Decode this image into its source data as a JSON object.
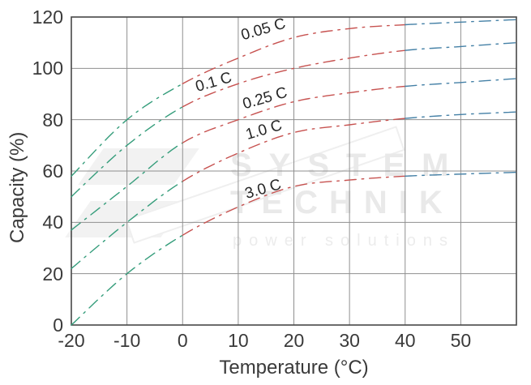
{
  "watermark": {
    "line1": "SYSTEM",
    "line2": "TECHNIK",
    "line3": "power solutions"
  },
  "chart_data": {
    "type": "line",
    "title": "",
    "xlabel": "Temperature (°C)",
    "ylabel": "Capacity (%)",
    "xlim": [
      -20,
      60
    ],
    "ylim": [
      0,
      120
    ],
    "xticks": [
      -20,
      -10,
      0,
      10,
      20,
      30,
      40,
      50
    ],
    "yticks": [
      0,
      20,
      40,
      60,
      80,
      100,
      120
    ],
    "grid": true,
    "grid_step_x": 10,
    "legend_position": "labels-on-curves",
    "line_style": "dash-dot",
    "x": [
      -20,
      -10,
      0,
      10,
      20,
      30,
      40,
      50,
      60
    ],
    "series": [
      {
        "name": "0.05 C",
        "values": [
          58,
          80,
          94,
          104,
          112,
          115.5,
          117,
          118,
          119
        ]
      },
      {
        "name": "0.1 C",
        "values": [
          50,
          70,
          85,
          94,
          100,
          104,
          107,
          108.5,
          110
        ]
      },
      {
        "name": "0.25 C",
        "values": [
          37,
          54,
          71,
          80,
          87,
          90.5,
          93,
          94.5,
          96
        ]
      },
      {
        "name": "1.0 C",
        "values": [
          22,
          40,
          56,
          67,
          75,
          78,
          80.5,
          82,
          83
        ]
      },
      {
        "name": "3.0 C",
        "values": [
          0,
          20,
          35,
          46,
          54,
          56.5,
          58,
          58.8,
          59.5
        ]
      }
    ],
    "segment_colors": [
      {
        "range": [
          -20,
          0
        ],
        "color": "#359d7b"
      },
      {
        "range": [
          0,
          40
        ],
        "color": "#c75250"
      },
      {
        "range": [
          40,
          60
        ],
        "color": "#4480a6"
      }
    ],
    "colors": {
      "grid": "#8f8f8f",
      "border": "#474747",
      "tick_text": "#3a3a3a",
      "curve_label_text": "#262626"
    }
  }
}
